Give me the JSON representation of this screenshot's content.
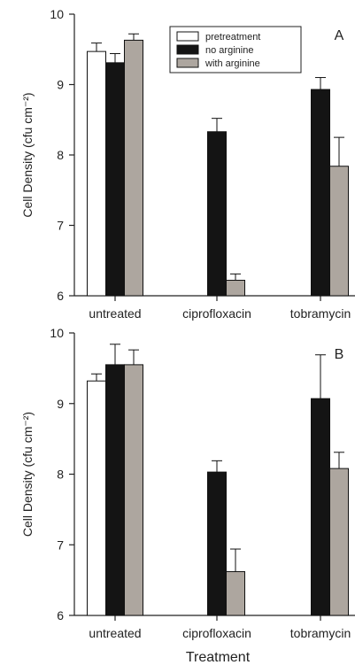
{
  "figure": {
    "xlabel": "Treatment"
  },
  "colors": {
    "pretreatment": "#ffffff",
    "no arginine": "#141414",
    "with arginine": "#ada69f",
    "axis": "#222222"
  },
  "chart_data": [
    {
      "type": "bar",
      "panel_label": "A",
      "ylabel": "Cell Density (cfu cm⁻²)",
      "ylim": [
        6,
        10
      ],
      "yticks": [
        "6",
        "7",
        "8",
        "9",
        "10"
      ],
      "categories": [
        "untreated",
        "ciprofloxacin",
        "tobramycin"
      ],
      "legend": [
        "pretreatment",
        "no arginine",
        "with arginine"
      ],
      "legend_position": "top-right",
      "series": [
        {
          "name": "pretreatment",
          "values": [
            9.47,
            null,
            null
          ],
          "errors": [
            0.12,
            null,
            null
          ]
        },
        {
          "name": "no arginine",
          "values": [
            9.31,
            8.33,
            8.93
          ],
          "errors": [
            0.13,
            0.19,
            0.17
          ]
        },
        {
          "name": "with arginine",
          "values": [
            9.63,
            6.22,
            7.84
          ],
          "errors": [
            0.09,
            0.09,
            0.41
          ]
        }
      ]
    },
    {
      "type": "bar",
      "panel_label": "B",
      "ylabel": "Cell Density (cfu cm⁻²)",
      "ylim": [
        6,
        10
      ],
      "yticks": [
        "6",
        "7",
        "8",
        "9",
        "10"
      ],
      "categories": [
        "untreated",
        "ciprofloxacin",
        "tobramycin"
      ],
      "series": [
        {
          "name": "pretreatment",
          "values": [
            9.32,
            null,
            null
          ],
          "errors": [
            0.1,
            null,
            null
          ]
        },
        {
          "name": "no arginine",
          "values": [
            9.55,
            8.03,
            9.07
          ],
          "errors": [
            0.29,
            0.16,
            0.62
          ]
        },
        {
          "name": "with arginine",
          "values": [
            9.55,
            6.62,
            8.08
          ],
          "errors": [
            0.21,
            0.32,
            0.23
          ]
        }
      ]
    }
  ]
}
